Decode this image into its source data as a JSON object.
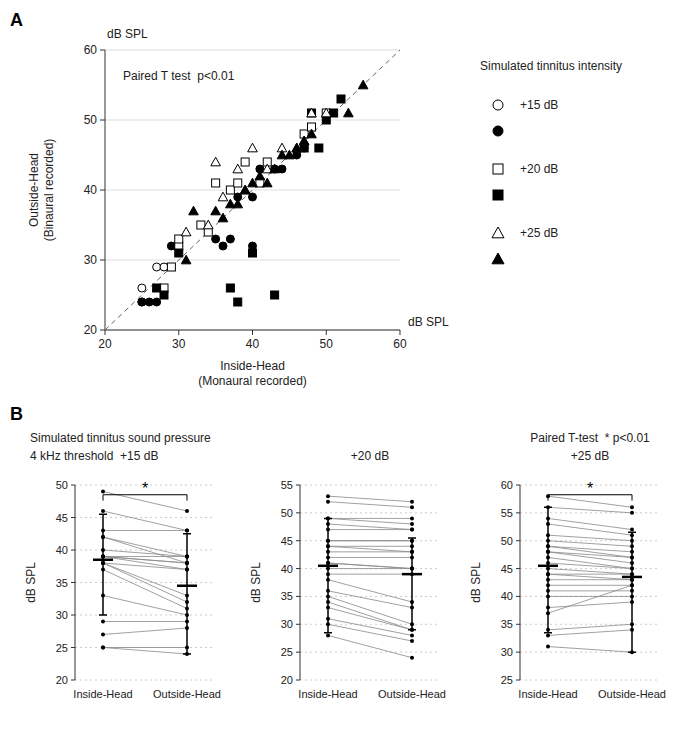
{
  "chart_data": [
    {
      "type": "scatter",
      "panel_label": "A",
      "xlabel": "Inside-Head\n(Monaural recorded)",
      "ylabel": "Outside-Head\n(Binaural recorded)",
      "x_unit": "dB SPL",
      "y_unit": "dB SPL",
      "annotation": "Paired T test  p<0.01",
      "xlim": [
        20,
        60
      ],
      "ylim": [
        20,
        60
      ],
      "xticks": [
        20,
        30,
        40,
        50,
        60
      ],
      "yticks": [
        20,
        30,
        40,
        50,
        60
      ],
      "grid": true,
      "legend": "right",
      "legend_title": "Simulated tinnitus intensity",
      "diagonal": [
        20,
        60
      ],
      "series": [
        {
          "name": "+15 dB",
          "marker": "open-circle",
          "color": "#000000",
          "x": [
            25,
            25,
            27,
            28
          ],
          "values": [
            26,
            24,
            29,
            29
          ]
        },
        {
          "marker": "circle",
          "color": "#000000",
          "x": [
            25,
            26,
            27,
            29,
            30,
            35,
            36,
            37,
            38,
            40,
            40,
            41,
            43,
            44,
            46,
            47
          ],
          "values": [
            24,
            24,
            24,
            32,
            32,
            33,
            32,
            33,
            39,
            39,
            32,
            43,
            43,
            43,
            45,
            46
          ]
        },
        {
          "name": "+20 dB",
          "marker": "open-square",
          "color": "#000000",
          "x": [
            28,
            29,
            30,
            30,
            33,
            34,
            35,
            37,
            38,
            39,
            41,
            42,
            47,
            48,
            50
          ],
          "values": [
            26,
            29,
            32,
            33,
            35,
            34,
            41,
            40,
            41,
            44,
            41,
            44,
            48,
            49,
            51
          ]
        },
        {
          "marker": "square",
          "color": "#000000",
          "x": [
            27,
            28,
            30,
            37,
            38,
            40,
            43,
            47,
            48,
            49,
            50,
            51,
            52
          ],
          "values": [
            26,
            25,
            31,
            26,
            24,
            31,
            25,
            46,
            51,
            46,
            50,
            51,
            53
          ]
        },
        {
          "name": "+25 dB",
          "marker": "open-triangle",
          "color": "#000000",
          "x": [
            31,
            34,
            35,
            36,
            38,
            39,
            40,
            42,
            44,
            46,
            47,
            48,
            50
          ],
          "values": [
            34,
            35,
            44,
            39,
            43,
            40,
            46,
            43,
            46,
            46,
            47,
            51,
            51
          ]
        },
        {
          "marker": "triangle",
          "color": "#000000",
          "x": [
            31,
            32,
            35,
            36,
            37,
            38,
            39,
            40,
            41,
            42,
            43,
            44,
            45,
            46,
            47,
            48,
            53,
            55
          ],
          "values": [
            30,
            37,
            37,
            36,
            38,
            38,
            40,
            41,
            42,
            41,
            43,
            45,
            45,
            46,
            47,
            48,
            51,
            55
          ]
        }
      ]
    },
    {
      "type": "paired",
      "panel_label": "B",
      "subtitle": "Simulated tinnitus sound pressure",
      "title": "4 kHz threshold  +15 dB",
      "ylabel": "dB SPL",
      "categories": [
        "Inside-Head",
        "Outside-Head"
      ],
      "ylim": [
        20,
        50
      ],
      "yticks": [
        20,
        25,
        30,
        35,
        40,
        45,
        50
      ],
      "grid": true,
      "mean": [
        38.5,
        34.5
      ],
      "sd_low": [
        8.5,
        10.5
      ],
      "sd_high": [
        7.0,
        8.0
      ],
      "bracket_label": "*",
      "series": [
        {
          "values": [
            49,
            46
          ]
        },
        {
          "values": [
            46,
            43
          ]
        },
        {
          "values": [
            43,
            43
          ]
        },
        {
          "values": [
            42,
            38
          ]
        },
        {
          "values": [
            42,
            39
          ]
        },
        {
          "values": [
            40,
            39
          ]
        },
        {
          "values": [
            39,
            39
          ]
        },
        {
          "values": [
            39,
            38
          ]
        },
        {
          "values": [
            39,
            38
          ]
        },
        {
          "values": [
            39,
            37
          ]
        },
        {
          "values": [
            38,
            37
          ]
        },
        {
          "values": [
            38,
            33
          ]
        },
        {
          "values": [
            38,
            32
          ]
        },
        {
          "values": [
            37,
            31
          ]
        },
        {
          "values": [
            33,
            30
          ]
        },
        {
          "values": [
            29,
            29
          ]
        },
        {
          "values": [
            27,
            28
          ]
        },
        {
          "values": [
            25,
            25
          ]
        },
        {
          "values": [
            25,
            24
          ]
        }
      ]
    },
    {
      "type": "paired",
      "title": "+20 dB",
      "ylabel": "dB SPL",
      "categories": [
        "Inside-Head",
        "Outside-Head"
      ],
      "ylim": [
        20,
        55
      ],
      "yticks": [
        20,
        25,
        30,
        35,
        40,
        45,
        50,
        55
      ],
      "grid": true,
      "mean": [
        40.5,
        39.0
      ],
      "sd_low": [
        12.0,
        10.0
      ],
      "sd_high": [
        8.5,
        6.5
      ],
      "series": [
        {
          "values": [
            53,
            52
          ]
        },
        {
          "values": [
            52,
            51
          ]
        },
        {
          "values": [
            49,
            49
          ]
        },
        {
          "values": [
            49,
            48
          ]
        },
        {
          "values": [
            48,
            47
          ]
        },
        {
          "values": [
            47,
            47
          ]
        },
        {
          "values": [
            45,
            45
          ]
        },
        {
          "values": [
            45,
            45
          ]
        },
        {
          "values": [
            44,
            44
          ]
        },
        {
          "values": [
            44,
            43
          ]
        },
        {
          "values": [
            43,
            43
          ]
        },
        {
          "values": [
            42,
            42
          ]
        },
        {
          "values": [
            41,
            40
          ]
        },
        {
          "values": [
            41,
            40
          ]
        },
        {
          "values": [
            40,
            40
          ]
        },
        {
          "values": [
            39,
            39
          ]
        },
        {
          "values": [
            38,
            34
          ]
        },
        {
          "values": [
            36,
            33
          ]
        },
        {
          "values": [
            35,
            30
          ]
        },
        {
          "values": [
            34,
            29
          ]
        },
        {
          "values": [
            33,
            29
          ]
        },
        {
          "values": [
            31,
            28
          ]
        },
        {
          "values": [
            30,
            27
          ]
        },
        {
          "values": [
            28,
            24
          ]
        }
      ]
    },
    {
      "type": "paired",
      "title": "+25 dB",
      "ylabel": "dB SPL",
      "annotation": "Paired T-test  * p<0.01",
      "categories": [
        "Inside-Head",
        "Outside-Head"
      ],
      "ylim": [
        25,
        60
      ],
      "yticks": [
        25,
        30,
        35,
        40,
        45,
        50,
        55,
        60
      ],
      "grid": true,
      "mean": [
        45.5,
        43.5
      ],
      "sd_low": [
        12.0,
        13.5
      ],
      "sd_high": [
        10.5,
        8.0
      ],
      "bracket_label": "*",
      "series": [
        {
          "values": [
            58,
            56
          ]
        },
        {
          "values": [
            56,
            55
          ]
        },
        {
          "values": [
            54,
            52
          ]
        },
        {
          "values": [
            53,
            51
          ]
        },
        {
          "values": [
            51,
            50
          ]
        },
        {
          "values": [
            50,
            49
          ]
        },
        {
          "values": [
            49,
            48
          ]
        },
        {
          "values": [
            49,
            47
          ]
        },
        {
          "values": [
            48,
            47
          ]
        },
        {
          "values": [
            48,
            46
          ]
        },
        {
          "values": [
            47,
            45
          ]
        },
        {
          "values": [
            46,
            45
          ]
        },
        {
          "values": [
            45,
            44
          ]
        },
        {
          "values": [
            44,
            44
          ]
        },
        {
          "values": [
            44,
            43
          ]
        },
        {
          "values": [
            43,
            43
          ]
        },
        {
          "values": [
            42,
            42
          ]
        },
        {
          "values": [
            41,
            41
          ]
        },
        {
          "values": [
            40,
            40
          ]
        },
        {
          "values": [
            38,
            39
          ]
        },
        {
          "values": [
            37,
            42
          ]
        },
        {
          "values": [
            34,
            35
          ]
        },
        {
          "values": [
            33,
            34
          ]
        },
        {
          "values": [
            31,
            30
          ]
        }
      ]
    }
  ]
}
